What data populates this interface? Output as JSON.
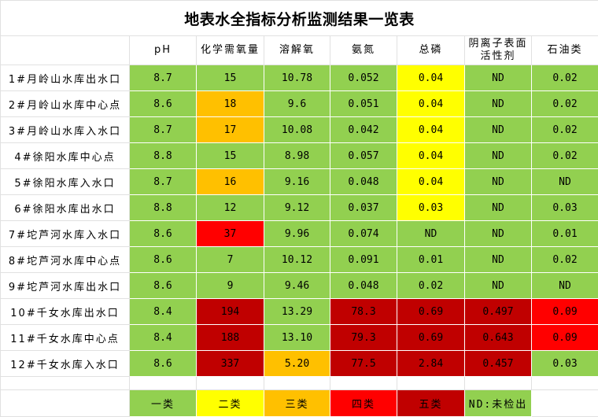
{
  "title": "地表水全指标分析监测结果一览表",
  "colors": {
    "class1": "#92d050",
    "class2": "#ffff00",
    "class3": "#ffc000",
    "class4": "#ff0000",
    "class5": "#c00000",
    "nd": "#92d050"
  },
  "headers": [
    "",
    "pH",
    "化学需氧量",
    "溶解氧",
    "氨氮",
    "总磷",
    "阴离子表面活性剂",
    "石油类"
  ],
  "header_wrap": {
    "surfactant_line1": "阴离子表面",
    "surfactant_line2": "活性剂"
  },
  "rows": [
    {
      "site": "1#月岭山水库出水口",
      "values": [
        "8.7",
        "15",
        "10.78",
        "0.052",
        "0.04",
        "ND",
        "0.02"
      ],
      "classes": [
        "c1",
        "c1",
        "c1",
        "c1",
        "c2",
        "c1",
        "c1"
      ]
    },
    {
      "site": "2#月岭山水库中心点",
      "values": [
        "8.6",
        "18",
        "9.6",
        "0.051",
        "0.04",
        "ND",
        "0.02"
      ],
      "classes": [
        "c1",
        "c3",
        "c1",
        "c1",
        "c2",
        "c1",
        "c1"
      ]
    },
    {
      "site": "3#月岭山水库入水口",
      "values": [
        "8.7",
        "17",
        "10.08",
        "0.042",
        "0.04",
        "ND",
        "0.02"
      ],
      "classes": [
        "c1",
        "c3",
        "c1",
        "c1",
        "c2",
        "c1",
        "c1"
      ]
    },
    {
      "site": "4#徐阳水库中心点",
      "values": [
        "8.8",
        "15",
        "8.98",
        "0.057",
        "0.04",
        "ND",
        "0.02"
      ],
      "classes": [
        "c1",
        "c1",
        "c1",
        "c1",
        "c2",
        "c1",
        "c1"
      ]
    },
    {
      "site": "5#徐阳水库入水口",
      "values": [
        "8.7",
        "16",
        "9.16",
        "0.048",
        "0.04",
        "ND",
        "ND"
      ],
      "classes": [
        "c1",
        "c3",
        "c1",
        "c1",
        "c2",
        "c1",
        "c1"
      ]
    },
    {
      "site": "6#徐阳水库出水口",
      "values": [
        "8.8",
        "12",
        "9.12",
        "0.037",
        "0.03",
        "ND",
        "0.03"
      ],
      "classes": [
        "c1",
        "c1",
        "c1",
        "c1",
        "c2",
        "c1",
        "c1"
      ]
    },
    {
      "site": "7#坨芦河水库入水口",
      "values": [
        "8.6",
        "37",
        "9.96",
        "0.074",
        "ND",
        "ND",
        "0.01"
      ],
      "classes": [
        "c1",
        "c4",
        "c1",
        "c1",
        "c1",
        "c1",
        "c1"
      ]
    },
    {
      "site": "8#坨芦河水库中心点",
      "values": [
        "8.6",
        "7",
        "10.12",
        "0.091",
        "0.01",
        "ND",
        "0.02"
      ],
      "classes": [
        "c1",
        "c1",
        "c1",
        "c1",
        "c1",
        "c1",
        "c1"
      ]
    },
    {
      "site": "9#坨芦河水库出水口",
      "values": [
        "8.6",
        "9",
        "9.46",
        "0.048",
        "0.02",
        "ND",
        "ND"
      ],
      "classes": [
        "c1",
        "c1",
        "c1",
        "c1",
        "c1",
        "c1",
        "c1"
      ]
    },
    {
      "site": "10#千女水库出水口",
      "values": [
        "8.4",
        "194",
        "13.29",
        "78.3",
        "0.69",
        "0.497",
        "0.09"
      ],
      "classes": [
        "c1",
        "c5",
        "c1",
        "c5",
        "c5",
        "c5",
        "c4"
      ]
    },
    {
      "site": "11#千女水库中心点",
      "values": [
        "8.4",
        "188",
        "13.10",
        "79.3",
        "0.69",
        "0.643",
        "0.09"
      ],
      "classes": [
        "c1",
        "c5",
        "c1",
        "c5",
        "c5",
        "c5",
        "c4"
      ]
    },
    {
      "site": "12#千女水库入水口",
      "values": [
        "8.6",
        "337",
        "5.20",
        "77.5",
        "2.84",
        "0.457",
        "0.03"
      ],
      "classes": [
        "c1",
        "c5",
        "c3",
        "c5",
        "c5",
        "c5",
        "c1"
      ]
    }
  ],
  "legend": [
    {
      "label": "一类",
      "class": "c1"
    },
    {
      "label": "二类",
      "class": "c2"
    },
    {
      "label": "三类",
      "class": "c3"
    },
    {
      "label": "四类",
      "class": "c4"
    },
    {
      "label": "五类",
      "class": "c5"
    },
    {
      "label": "ND:未检出",
      "class": "cnd"
    },
    {
      "label": "",
      "class": "cw"
    }
  ]
}
